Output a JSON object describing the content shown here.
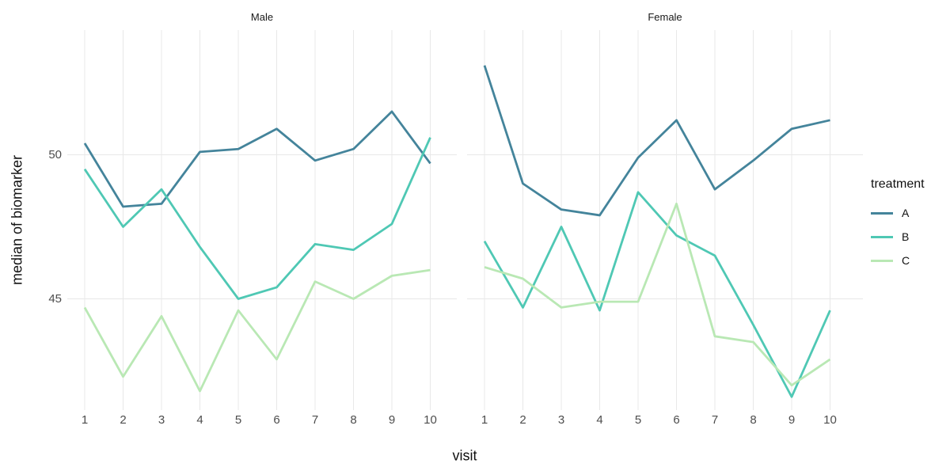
{
  "chart_data": {
    "type": "line",
    "title": "",
    "xlabel": "visit",
    "ylabel": "median of biomarker",
    "x": [
      1,
      2,
      3,
      4,
      5,
      6,
      7,
      8,
      9,
      10
    ],
    "xtick_labels": [
      "1",
      "2",
      "3",
      "4",
      "5",
      "6",
      "7",
      "8",
      "9",
      "10"
    ],
    "yticks": [
      45,
      50
    ],
    "ytick_labels": [
      "45",
      "50"
    ],
    "ylim": [
      41.0,
      54.4
    ],
    "grid": "major-only",
    "legend": {
      "title": "treatment",
      "position": "right",
      "entries": [
        {
          "label": "A",
          "color": "#44849b"
        },
        {
          "label": "B",
          "color": "#4fc8b4"
        },
        {
          "label": "C",
          "color": "#b9e8b4"
        }
      ]
    },
    "facets": [
      {
        "label": "Male",
        "series": [
          {
            "name": "A",
            "color": "#44849b",
            "values": [
              50.4,
              48.2,
              48.3,
              50.1,
              50.2,
              50.9,
              49.8,
              50.2,
              51.5,
              49.7
            ]
          },
          {
            "name": "B",
            "color": "#4fc8b4",
            "values": [
              49.5,
              47.5,
              48.8,
              46.8,
              45.0,
              45.4,
              46.9,
              46.7,
              47.6,
              50.6
            ]
          },
          {
            "name": "C",
            "color": "#b9e8b4",
            "values": [
              44.7,
              42.3,
              44.4,
              41.8,
              44.6,
              42.9,
              45.6,
              45.0,
              45.8,
              46.0
            ]
          }
        ]
      },
      {
        "label": "Female",
        "series": [
          {
            "name": "A",
            "color": "#44849b",
            "values": [
              53.1,
              49.0,
              48.1,
              47.9,
              49.9,
              51.2,
              48.8,
              49.8,
              50.9,
              51.2
            ]
          },
          {
            "name": "B",
            "color": "#4fc8b4",
            "values": [
              47.0,
              44.7,
              47.5,
              44.6,
              48.7,
              47.2,
              46.5,
              44.1,
              41.6,
              44.6
            ]
          },
          {
            "name": "C",
            "color": "#b9e8b4",
            "values": [
              46.1,
              45.7,
              44.7,
              44.9,
              44.9,
              48.3,
              43.7,
              43.5,
              42.0,
              42.9
            ]
          }
        ]
      }
    ],
    "style": {
      "background": "#ffffff",
      "grid_color": "#e8e8e8",
      "tick_label_color": "#4d4d4d",
      "text_color": "#111111",
      "line_width": 2.8
    }
  }
}
